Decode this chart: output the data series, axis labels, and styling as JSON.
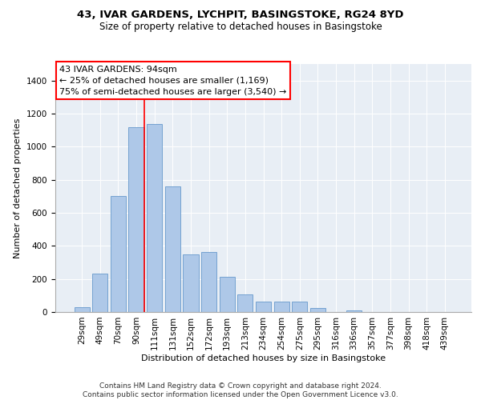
{
  "title1": "43, IVAR GARDENS, LYCHPIT, BASINGSTOKE, RG24 8YD",
  "title2": "Size of property relative to detached houses in Basingstoke",
  "xlabel": "Distribution of detached houses by size in Basingstoke",
  "ylabel": "Number of detached properties",
  "categories": [
    "29sqm",
    "49sqm",
    "70sqm",
    "90sqm",
    "111sqm",
    "131sqm",
    "152sqm",
    "172sqm",
    "193sqm",
    "213sqm",
    "234sqm",
    "254sqm",
    "275sqm",
    "295sqm",
    "316sqm",
    "336sqm",
    "357sqm",
    "377sqm",
    "398sqm",
    "418sqm",
    "439sqm"
  ],
  "values": [
    30,
    230,
    700,
    1120,
    1135,
    760,
    350,
    365,
    215,
    105,
    65,
    65,
    65,
    25,
    0,
    12,
    0,
    0,
    0,
    0,
    0
  ],
  "bar_color": "#aec8e8",
  "bar_edge_color": "#6699cc",
  "red_line_index": 3.42,
  "annotation_text": "43 IVAR GARDENS: 94sqm\n← 25% of detached houses are smaller (1,169)\n75% of semi-detached houses are larger (3,540) →",
  "footer": "Contains HM Land Registry data © Crown copyright and database right 2024.\nContains public sector information licensed under the Open Government Licence v3.0.",
  "ylim": [
    0,
    1500
  ],
  "yticks": [
    0,
    200,
    400,
    600,
    800,
    1000,
    1200,
    1400
  ],
  "plot_background": "#e8eef5",
  "fig_background": "#ffffff",
  "title1_fontsize": 9.5,
  "title2_fontsize": 8.5,
  "ylabel_fontsize": 8,
  "xlabel_fontsize": 8,
  "tick_fontsize": 7.5,
  "footer_fontsize": 6.5,
  "annotation_fontsize": 8
}
